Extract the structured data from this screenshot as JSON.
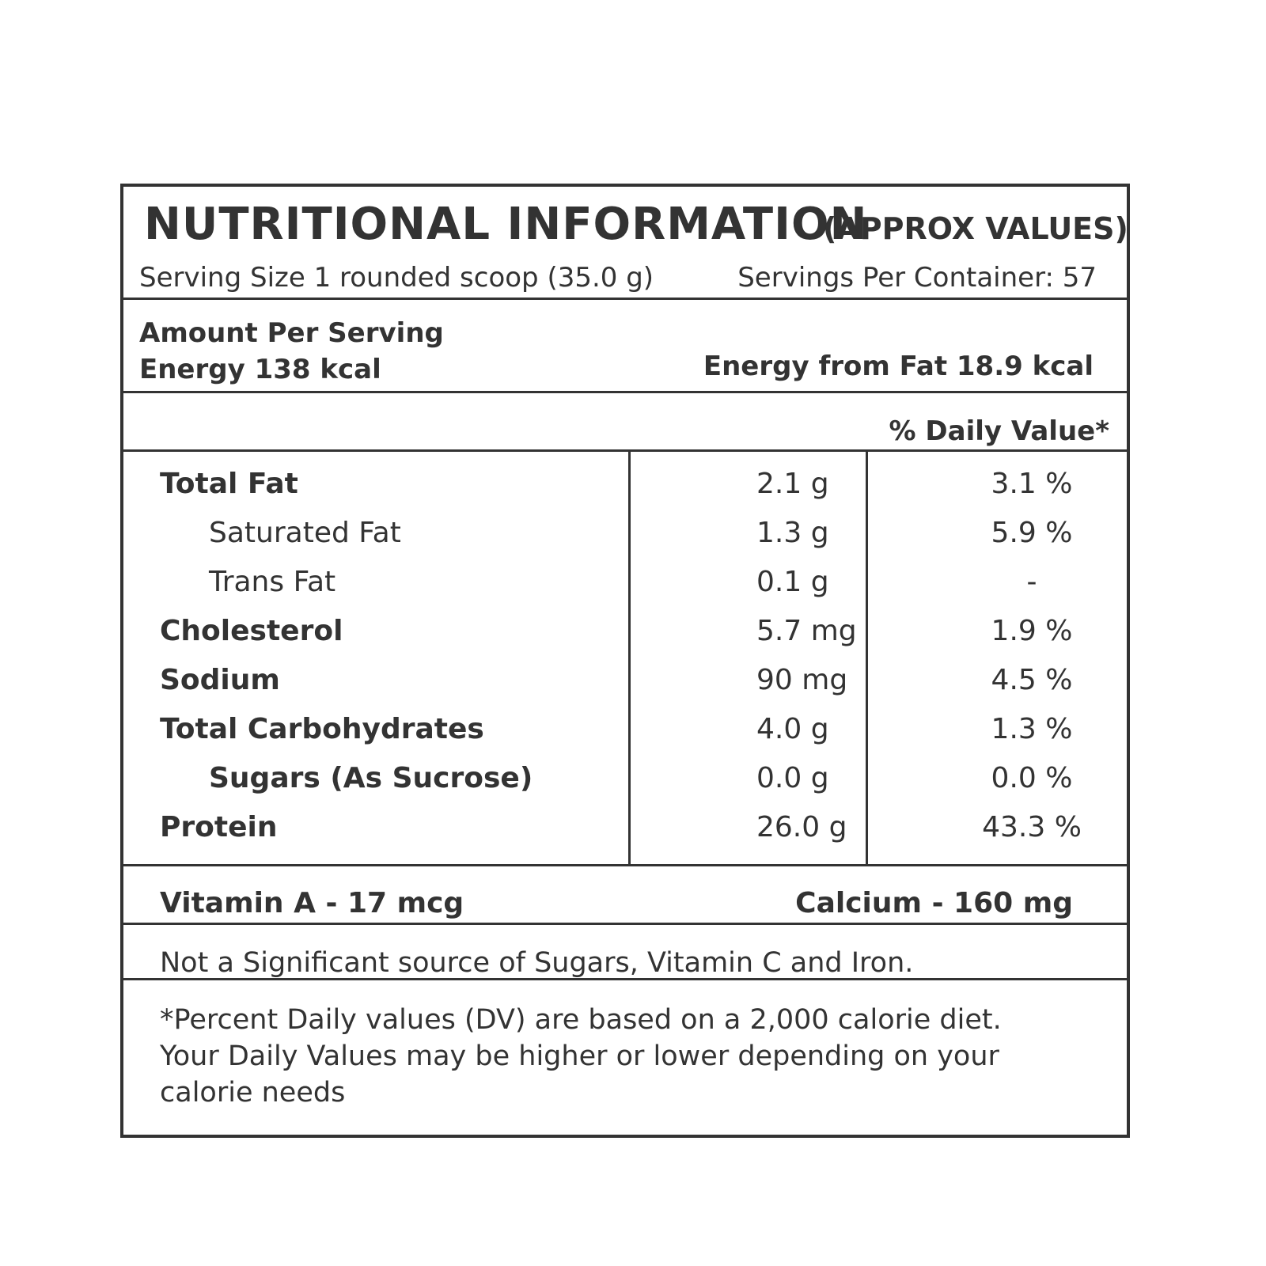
{
  "header": {
    "title": "NUTRITIONAL INFORMATION",
    "subtitle": "(APPROX VALUES)",
    "serving_size": "Serving Size 1 rounded scoop (35.0 g)",
    "servings_per_container": "Servings Per Container: 57"
  },
  "energy": {
    "amount_per_serving": "Amount Per Serving",
    "energy": "Energy 138 kcal",
    "energy_from_fat": "Energy from Fat 18.9 kcal"
  },
  "daily_value_header": "% Daily Value*",
  "nutrients": [
    {
      "name": "Total Fat",
      "amount": "2.1 g",
      "dv": "3.1 %"
    },
    {
      "name": "Saturated Fat",
      "amount": "1.3 g",
      "dv": "5.9 %"
    },
    {
      "name": "Trans Fat",
      "amount": "0.1 g",
      "dv": "-"
    },
    {
      "name": "Cholesterol",
      "amount": "5.7 mg",
      "dv": "1.9 %"
    },
    {
      "name": "Sodium",
      "amount": "90 mg",
      "dv": "4.5 %"
    },
    {
      "name": "Total Carbohydrates",
      "amount": "4.0 g",
      "dv": "1.3 %"
    },
    {
      "name": "Sugars (As Sucrose)",
      "amount": "0.0 g",
      "dv": "0.0 %"
    },
    {
      "name": "Protein",
      "amount": "26.0 g",
      "dv": "43.3 %"
    }
  ],
  "minerals": {
    "vitamin_a": "Vitamin A - 17 mcg",
    "calcium": "Calcium - 160 mg"
  },
  "note": "Not a Significant source of Sugars, Vitamin C and Iron.",
  "footnote": "*Percent Daily values (DV) are based on a 2,000 calorie diet. Your Daily Values may be higher or lower depending on your calorie needs"
}
